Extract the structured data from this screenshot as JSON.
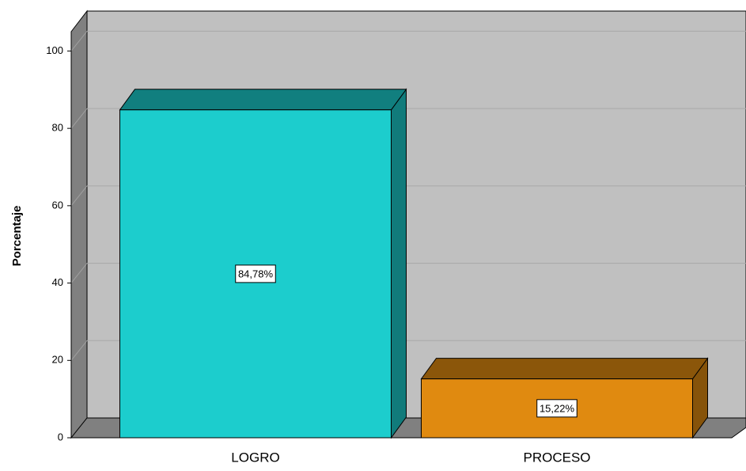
{
  "chart_data": {
    "type": "bar3d",
    "ylabel": "Porcentaje",
    "categories": [
      "LOGRO",
      "PROCESO"
    ],
    "values": [
      84.78,
      15.22
    ],
    "value_labels": [
      "84,78%",
      "15,22%"
    ],
    "colors": [
      "#1ccdcd",
      "#e08a10"
    ],
    "ylim": [
      0,
      105
    ],
    "yticks": [
      0,
      20,
      40,
      60,
      80,
      100
    ],
    "grid": true
  }
}
